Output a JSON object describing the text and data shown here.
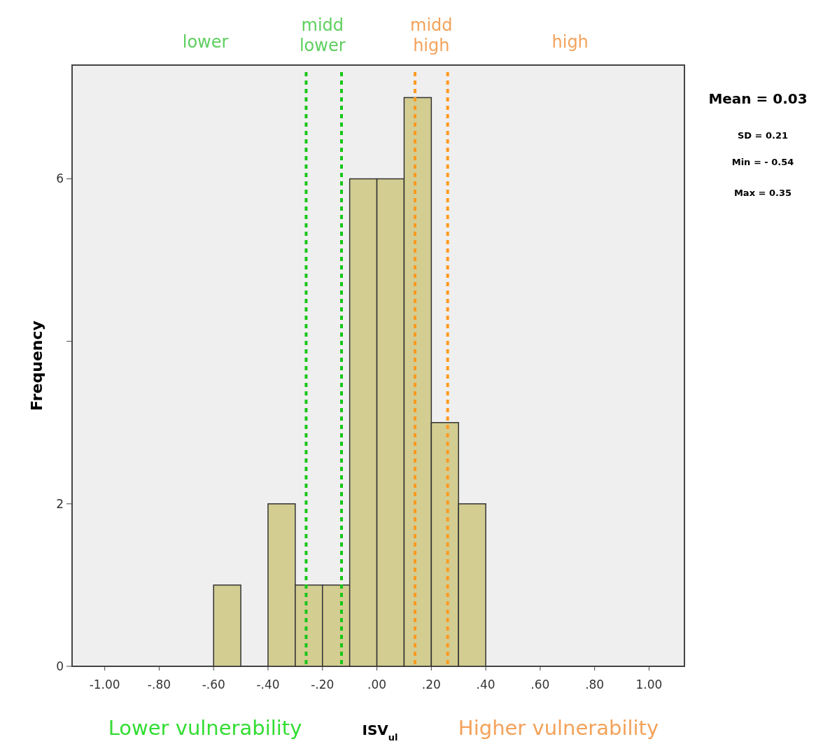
{
  "chart_data": {
    "type": "histogram",
    "xlabel": "ISV$_{ul}$",
    "ylabel": "Frequency",
    "bins": [
      -0.6,
      -0.5,
      -0.4,
      -0.3,
      -0.2,
      -0.1,
      0,
      0.1,
      0.2,
      0.3,
      0.4
    ],
    "values": [
      1,
      0,
      2,
      1,
      1,
      6,
      6,
      7,
      3,
      2
    ],
    "color": "#d3cd92",
    "xlim": [
      -1.12,
      1.13
    ],
    "ylim": [
      0,
      7.4
    ],
    "xticks": [
      {
        "value": -1,
        "label": "-1.00"
      },
      {
        "value": -0.8,
        "label": "-.80"
      },
      {
        "value": -0.6,
        "label": "-.60"
      },
      {
        "value": -0.4,
        "label": "-.40"
      },
      {
        "value": -0.2,
        "label": "-.20"
      },
      {
        "value": 0,
        "label": ".00"
      },
      {
        "value": 0.2,
        "label": ".20"
      },
      {
        "value": 0.4,
        "label": ".40"
      },
      {
        "value": 0.6,
        "label": ".60"
      },
      {
        "value": 0.8,
        "label": ".80"
      },
      {
        "value": 1,
        "label": "1.00"
      }
    ],
    "yticks": [
      0,
      2,
      {
        "value": 4,
        "label": null
      },
      6
    ],
    "grid": false,
    "ref_lines": [
      {
        "axis": "x",
        "value": -0.26,
        "color": "#19c619",
        "line_style": "dashed"
      },
      {
        "axis": "x",
        "value": -0.13,
        "color": "#19c619",
        "line_style": "dashed"
      },
      {
        "axis": "x",
        "value": 0.14,
        "color": "#ff9a1f",
        "line_style": "dashed"
      },
      {
        "axis": "x",
        "value": 0.26,
        "color": "#ff9a1f",
        "line_style": "dashed"
      }
    ],
    "annotations": [
      "lower",
      "midd\nlower",
      "midd\nhigh",
      "high",
      "Mean = 0.03",
      "SD = 0.21",
      "Min = - 0.54",
      "Max = 0.35",
      "Lower vulnerability",
      "Higher vulnerability"
    ]
  }
}
